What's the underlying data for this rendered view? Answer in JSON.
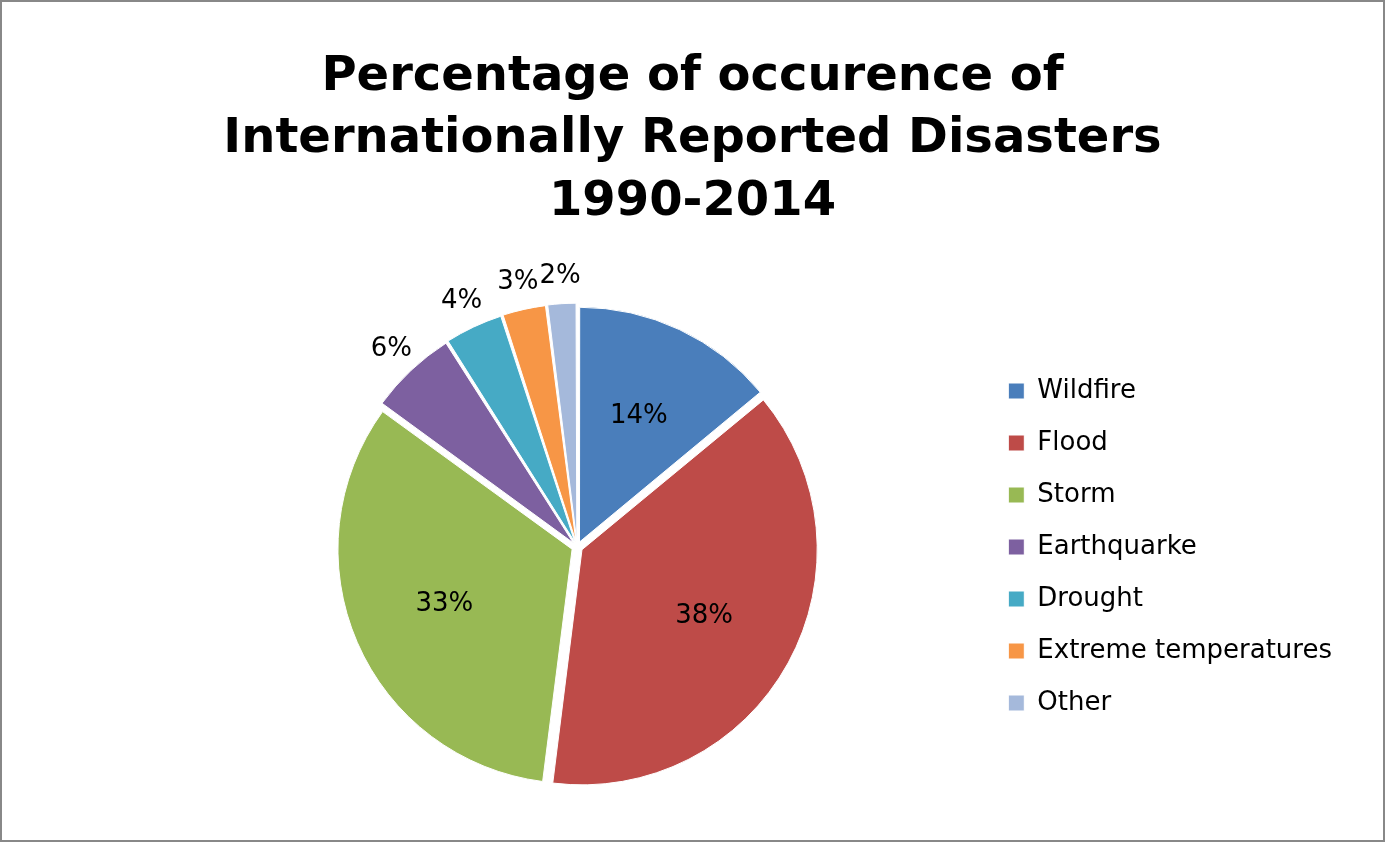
{
  "chart_data": {
    "type": "pie",
    "title": "Percentage of occurence of Internationally Reported Disasters 1990-2014",
    "categories": [
      "Wildfire",
      "Flood",
      "Storm",
      "Earthquarke",
      "Drought",
      "Extreme temperatures",
      "Other"
    ],
    "values": [
      14,
      38,
      33,
      6,
      4,
      3,
      2
    ],
    "value_labels": [
      "14%",
      "38%",
      "33%",
      "6%",
      "4%",
      "3%",
      "2%"
    ],
    "colors": [
      "#4a7ebb",
      "#be4b48",
      "#98b954",
      "#7d60a0",
      "#46aac5",
      "#f79646",
      "#a5b9db"
    ],
    "legend": "right"
  }
}
